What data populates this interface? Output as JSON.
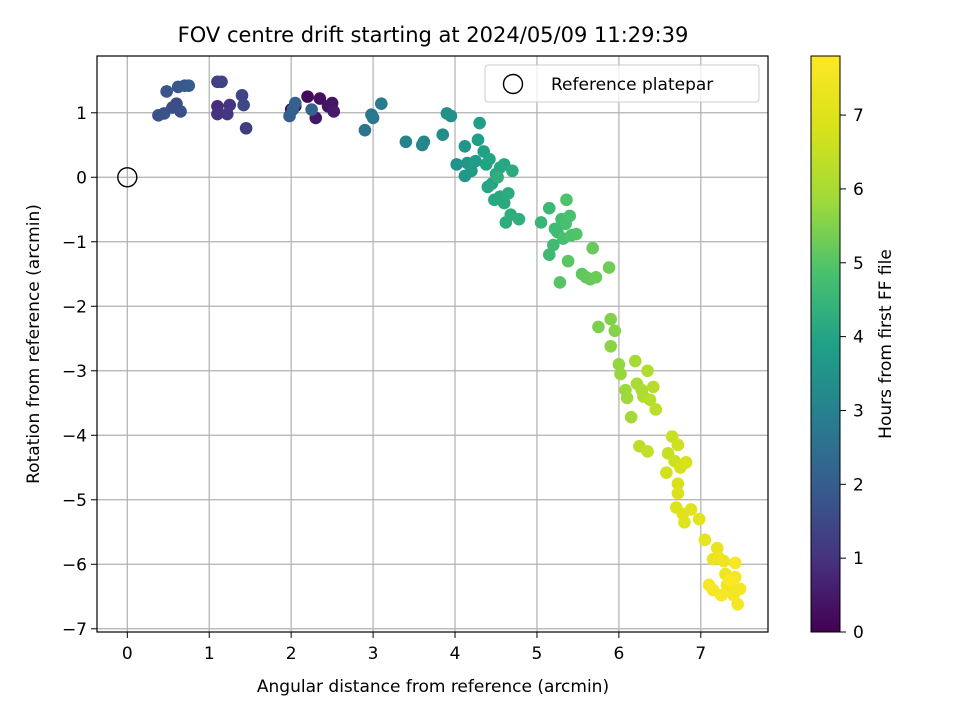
{
  "chart_data": {
    "type": "scatter",
    "title": "FOV centre drift starting at 2024/05/09 11:29:39",
    "xlabel": "Angular distance from reference (arcmin)",
    "ylabel": "Rotation from reference (arcmin)",
    "xlim": [
      -0.37,
      7.82
    ],
    "ylim": [
      -7.05,
      1.88
    ],
    "xticks": [
      0,
      1,
      2,
      3,
      4,
      5,
      6,
      7
    ],
    "yticks": [
      1,
      0,
      -1,
      -2,
      -3,
      -4,
      -5,
      -6,
      -7
    ],
    "grid": true,
    "legend": {
      "placement": "top-right",
      "entries": [
        "Reference platepar"
      ]
    },
    "colorbar": {
      "label": "Hours from first FF file",
      "ticks": [
        0,
        1,
        2,
        3,
        4,
        5,
        6,
        7
      ],
      "range": [
        0,
        7.8
      ],
      "colormap": "viridis"
    },
    "reference_point": {
      "x": 0,
      "y": 0,
      "name": "Reference platepar"
    },
    "series": [
      {
        "marker_color_by": "hours",
        "points": [
          {
            "x": 2.0,
            "y": 1.05,
            "c": 0.1
          },
          {
            "x": 2.05,
            "y": 1.1,
            "c": 0.15
          },
          {
            "x": 2.2,
            "y": 1.25,
            "c": 0.2
          },
          {
            "x": 2.35,
            "y": 1.22,
            "c": 0.3
          },
          {
            "x": 2.45,
            "y": 1.1,
            "c": 0.35
          },
          {
            "x": 2.5,
            "y": 1.15,
            "c": 0.4
          },
          {
            "x": 2.3,
            "y": 0.92,
            "c": 0.45
          },
          {
            "x": 2.52,
            "y": 1.02,
            "c": 0.5
          },
          {
            "x": 1.1,
            "y": 1.1,
            "c": 0.9
          },
          {
            "x": 1.1,
            "y": 0.98,
            "c": 1.0
          },
          {
            "x": 1.25,
            "y": 1.12,
            "c": 1.05
          },
          {
            "x": 1.22,
            "y": 0.98,
            "c": 1.1
          },
          {
            "x": 1.45,
            "y": 0.76,
            "c": 1.2
          },
          {
            "x": 1.1,
            "y": 1.48,
            "c": 1.3
          },
          {
            "x": 1.15,
            "y": 1.48,
            "c": 1.35
          },
          {
            "x": 1.4,
            "y": 1.27,
            "c": 1.45
          },
          {
            "x": 1.42,
            "y": 1.12,
            "c": 1.5
          },
          {
            "x": 0.6,
            "y": 1.14,
            "c": 1.55
          },
          {
            "x": 0.55,
            "y": 1.08,
            "c": 1.6
          },
          {
            "x": 0.65,
            "y": 1.02,
            "c": 1.65
          },
          {
            "x": 0.38,
            "y": 0.96,
            "c": 1.7
          },
          {
            "x": 0.45,
            "y": 0.99,
            "c": 1.75
          },
          {
            "x": 0.48,
            "y": 1.33,
            "c": 1.8
          },
          {
            "x": 0.62,
            "y": 1.4,
            "c": 1.85
          },
          {
            "x": 0.7,
            "y": 1.42,
            "c": 1.9
          },
          {
            "x": 0.75,
            "y": 1.42,
            "c": 1.95
          },
          {
            "x": 1.98,
            "y": 0.95,
            "c": 2.0
          },
          {
            "x": 2.02,
            "y": 1.05,
            "c": 2.05
          },
          {
            "x": 2.05,
            "y": 1.15,
            "c": 2.1
          },
          {
            "x": 2.25,
            "y": 1.05,
            "c": 2.15
          },
          {
            "x": 2.9,
            "y": 0.73,
            "c": 2.6
          },
          {
            "x": 2.98,
            "y": 0.97,
            "c": 2.7
          },
          {
            "x": 3.0,
            "y": 0.92,
            "c": 2.75
          },
          {
            "x": 3.1,
            "y": 1.14,
            "c": 2.8
          },
          {
            "x": 3.4,
            "y": 0.55,
            "c": 3.0
          },
          {
            "x": 3.6,
            "y": 0.5,
            "c": 3.1
          },
          {
            "x": 3.62,
            "y": 0.55,
            "c": 3.15
          },
          {
            "x": 3.85,
            "y": 0.66,
            "c": 3.3
          },
          {
            "x": 3.9,
            "y": 0.99,
            "c": 3.4
          },
          {
            "x": 3.95,
            "y": 0.95,
            "c": 3.45
          },
          {
            "x": 4.02,
            "y": 0.2,
            "c": 3.5
          },
          {
            "x": 4.12,
            "y": 0.48,
            "c": 3.55
          },
          {
            "x": 4.15,
            "y": 0.22,
            "c": 3.6
          },
          {
            "x": 4.12,
            "y": 0.02,
            "c": 3.65
          },
          {
            "x": 4.2,
            "y": 0.1,
            "c": 3.7
          },
          {
            "x": 4.25,
            "y": 0.25,
            "c": 3.75
          },
          {
            "x": 4.28,
            "y": 0.58,
            "c": 3.8
          },
          {
            "x": 4.3,
            "y": 0.84,
            "c": 3.85
          },
          {
            "x": 4.35,
            "y": 0.4,
            "c": 3.9
          },
          {
            "x": 4.38,
            "y": 0.2,
            "c": 3.95
          },
          {
            "x": 4.42,
            "y": 0.28,
            "c": 4.0
          },
          {
            "x": 4.45,
            "y": -0.1,
            "c": 4.0
          },
          {
            "x": 4.4,
            "y": -0.15,
            "c": 4.05
          },
          {
            "x": 4.5,
            "y": 0.05,
            "c": 4.05
          },
          {
            "x": 4.55,
            "y": 0.15,
            "c": 4.1
          },
          {
            "x": 4.6,
            "y": 0.2,
            "c": 4.1
          },
          {
            "x": 4.48,
            "y": -0.35,
            "c": 4.1
          },
          {
            "x": 4.55,
            "y": -0.3,
            "c": 4.15
          },
          {
            "x": 4.6,
            "y": -0.4,
            "c": 4.15
          },
          {
            "x": 4.65,
            "y": -0.25,
            "c": 4.2
          },
          {
            "x": 4.7,
            "y": 0.1,
            "c": 4.2
          },
          {
            "x": 4.62,
            "y": -0.7,
            "c": 4.25
          },
          {
            "x": 4.68,
            "y": -0.58,
            "c": 4.25
          },
          {
            "x": 4.78,
            "y": -0.65,
            "c": 4.3
          },
          {
            "x": 4.52,
            "y": 0.0,
            "c": 4.3
          },
          {
            "x": 5.05,
            "y": -0.7,
            "c": 4.5
          },
          {
            "x": 5.15,
            "y": -0.48,
            "c": 4.6
          },
          {
            "x": 5.15,
            "y": -1.2,
            "c": 4.6
          },
          {
            "x": 5.2,
            "y": -1.05,
            "c": 4.65
          },
          {
            "x": 5.22,
            "y": -0.8,
            "c": 4.7
          },
          {
            "x": 5.25,
            "y": -0.85,
            "c": 4.7
          },
          {
            "x": 5.3,
            "y": -0.65,
            "c": 4.75
          },
          {
            "x": 5.32,
            "y": -0.95,
            "c": 4.8
          },
          {
            "x": 5.35,
            "y": -0.72,
            "c": 4.8
          },
          {
            "x": 5.4,
            "y": -0.6,
            "c": 4.85
          },
          {
            "x": 5.42,
            "y": -0.9,
            "c": 4.9
          },
          {
            "x": 5.36,
            "y": -0.35,
            "c": 4.9
          },
          {
            "x": 5.48,
            "y": -0.88,
            "c": 4.95
          },
          {
            "x": 5.28,
            "y": -1.63,
            "c": 5.0
          },
          {
            "x": 5.38,
            "y": -1.3,
            "c": 5.05
          },
          {
            "x": 5.55,
            "y": -1.5,
            "c": 5.1
          },
          {
            "x": 5.6,
            "y": -1.55,
            "c": 5.15
          },
          {
            "x": 5.65,
            "y": -1.58,
            "c": 5.2
          },
          {
            "x": 5.68,
            "y": -1.1,
            "c": 5.2
          },
          {
            "x": 5.72,
            "y": -1.55,
            "c": 5.25
          },
          {
            "x": 5.88,
            "y": -1.4,
            "c": 5.3
          },
          {
            "x": 5.75,
            "y": -2.32,
            "c": 5.45
          },
          {
            "x": 5.9,
            "y": -2.2,
            "c": 5.5
          },
          {
            "x": 5.95,
            "y": -2.38,
            "c": 5.55
          },
          {
            "x": 5.9,
            "y": -2.62,
            "c": 5.6
          },
          {
            "x": 6.0,
            "y": -2.9,
            "c": 5.7
          },
          {
            "x": 6.02,
            "y": -3.05,
            "c": 5.75
          },
          {
            "x": 6.08,
            "y": -3.3,
            "c": 5.8
          },
          {
            "x": 6.1,
            "y": -3.42,
            "c": 5.85
          },
          {
            "x": 6.15,
            "y": -3.72,
            "c": 5.9
          },
          {
            "x": 6.2,
            "y": -2.85,
            "c": 5.95
          },
          {
            "x": 6.22,
            "y": -3.2,
            "c": 6.0
          },
          {
            "x": 6.28,
            "y": -3.3,
            "c": 6.05
          },
          {
            "x": 6.3,
            "y": -3.4,
            "c": 6.1
          },
          {
            "x": 6.35,
            "y": -3.0,
            "c": 6.15
          },
          {
            "x": 6.38,
            "y": -3.45,
            "c": 6.2
          },
          {
            "x": 6.42,
            "y": -3.25,
            "c": 6.25
          },
          {
            "x": 6.45,
            "y": -3.6,
            "c": 6.3
          },
          {
            "x": 6.25,
            "y": -4.17,
            "c": 6.35
          },
          {
            "x": 6.35,
            "y": -4.25,
            "c": 6.4
          },
          {
            "x": 6.6,
            "y": -4.28,
            "c": 6.5
          },
          {
            "x": 6.65,
            "y": -4.02,
            "c": 6.55
          },
          {
            "x": 6.68,
            "y": -4.4,
            "c": 6.6
          },
          {
            "x": 6.72,
            "y": -4.15,
            "c": 6.65
          },
          {
            "x": 6.58,
            "y": -4.58,
            "c": 6.7
          },
          {
            "x": 6.75,
            "y": -4.5,
            "c": 6.75
          },
          {
            "x": 6.72,
            "y": -4.75,
            "c": 6.8
          },
          {
            "x": 6.82,
            "y": -4.42,
            "c": 6.85
          },
          {
            "x": 6.72,
            "y": -4.9,
            "c": 6.9
          },
          {
            "x": 6.7,
            "y": -5.12,
            "c": 6.95
          },
          {
            "x": 6.78,
            "y": -5.22,
            "c": 7.0
          },
          {
            "x": 6.8,
            "y": -5.35,
            "c": 7.0
          },
          {
            "x": 6.88,
            "y": -5.15,
            "c": 7.05
          },
          {
            "x": 6.98,
            "y": -5.3,
            "c": 7.1
          },
          {
            "x": 7.05,
            "y": -5.62,
            "c": 7.2
          },
          {
            "x": 7.15,
            "y": -5.92,
            "c": 7.3
          },
          {
            "x": 7.2,
            "y": -5.75,
            "c": 7.3
          },
          {
            "x": 7.22,
            "y": -5.9,
            "c": 7.35
          },
          {
            "x": 7.28,
            "y": -5.95,
            "c": 7.4
          },
          {
            "x": 7.3,
            "y": -6.15,
            "c": 7.45
          },
          {
            "x": 7.32,
            "y": -6.32,
            "c": 7.5
          },
          {
            "x": 7.38,
            "y": -6.38,
            "c": 7.5
          },
          {
            "x": 7.4,
            "y": -6.48,
            "c": 7.55
          },
          {
            "x": 7.42,
            "y": -6.2,
            "c": 7.55
          },
          {
            "x": 7.45,
            "y": -6.62,
            "c": 7.6
          },
          {
            "x": 7.48,
            "y": -6.38,
            "c": 7.6
          },
          {
            "x": 7.1,
            "y": -6.32,
            "c": 7.65
          },
          {
            "x": 7.15,
            "y": -6.4,
            "c": 7.65
          },
          {
            "x": 7.25,
            "y": -6.48,
            "c": 7.7
          },
          {
            "x": 7.42,
            "y": -5.98,
            "c": 7.7
          },
          {
            "x": 7.35,
            "y": -6.25,
            "c": 7.75
          }
        ]
      }
    ]
  }
}
